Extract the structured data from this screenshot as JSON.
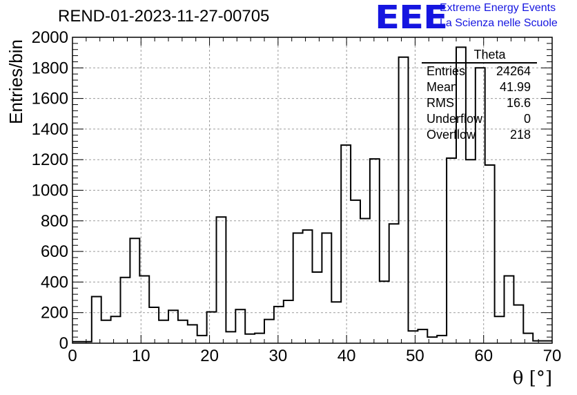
{
  "header": {
    "title": "REND-01-2023-11-27-00705",
    "logo_text": "EEE",
    "logo_line1": "Extreme Energy Events",
    "logo_line2": "La Scienza nelle Scuole"
  },
  "stats": {
    "name": "Theta",
    "rows": [
      {
        "label": "Entries",
        "value": "24264"
      },
      {
        "label": "Mean",
        "value": "41.99"
      },
      {
        "label": "RMS",
        "value": "16.6"
      },
      {
        "label": "Underflow",
        "value": "0"
      },
      {
        "label": "Overflow",
        "value": "218"
      }
    ]
  },
  "chart_data": {
    "type": "histogram",
    "xlabel": "θ [°]",
    "ylabel": "Entries/bin",
    "xlim": [
      0,
      70
    ],
    "ylim": [
      0,
      2000
    ],
    "x_ticks": [
      0,
      10,
      20,
      30,
      40,
      50,
      60,
      70
    ],
    "y_ticks": [
      0,
      200,
      400,
      600,
      800,
      1000,
      1200,
      1400,
      1600,
      1800,
      2000
    ],
    "grid": true,
    "bin_width": 1.4,
    "bin_edges_start": 0,
    "values": [
      10,
      10,
      305,
      150,
      175,
      430,
      685,
      440,
      235,
      150,
      215,
      150,
      120,
      50,
      205,
      825,
      75,
      220,
      60,
      65,
      155,
      240,
      280,
      720,
      740,
      465,
      720,
      270,
      1295,
      935,
      815,
      1205,
      405,
      780,
      1870,
      80,
      90,
      40,
      50,
      1210,
      1935,
      1200,
      1800,
      1165,
      175,
      440,
      250,
      65,
      15,
      15
    ]
  }
}
